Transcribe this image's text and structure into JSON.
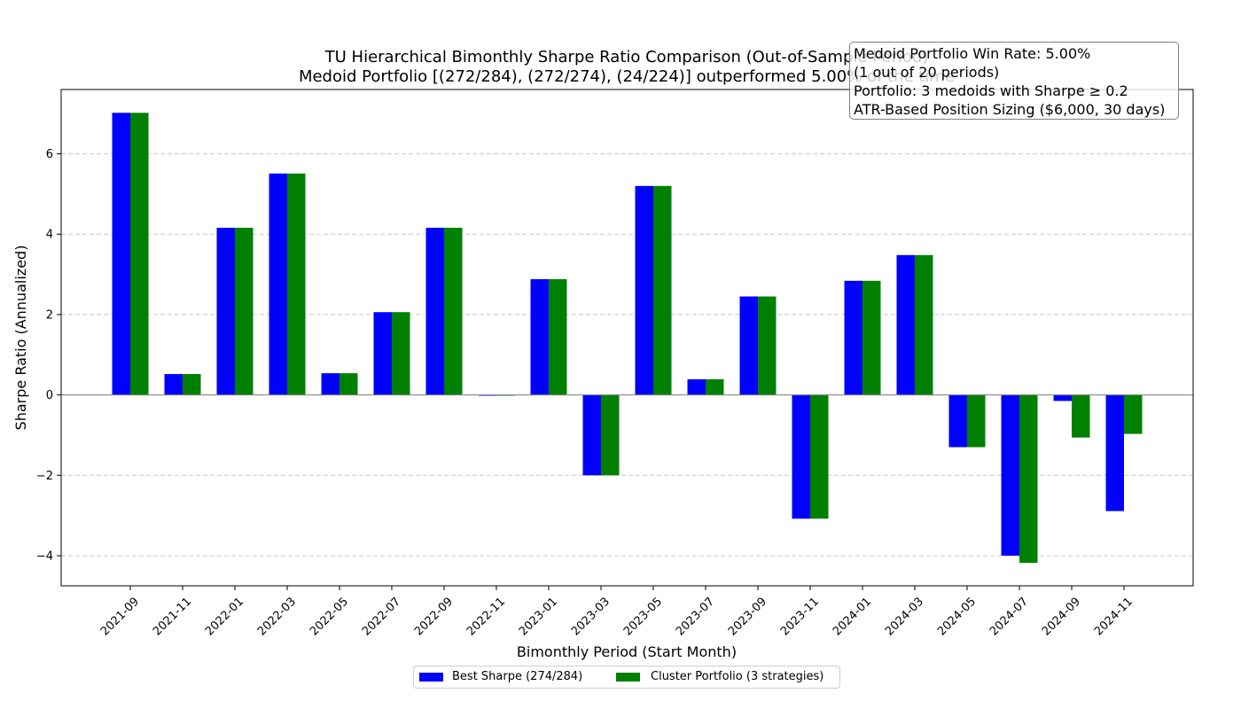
{
  "chart_data": {
    "type": "bar",
    "title": "TU Hierarchical Bimonthly Sharpe Ratio Comparison (Out-of-Sample Period)",
    "subtitle": "Medoid Portfolio [(272/284), (272/274), (24/224)] outperformed 5.00% of the time",
    "xlabel": "Bimonthly Period (Start Month)",
    "ylabel": "Sharpe Ratio (Annualized)",
    "ylim": [
      -4.75,
      7.6
    ],
    "yticks": [
      -4,
      -2,
      0,
      2,
      4,
      6
    ],
    "ytick_labels": [
      "−4",
      "−2",
      "0",
      "2",
      "4",
      "6"
    ],
    "grid": "horizontal dashed",
    "legend_placement": "bottom-center",
    "categories": [
      "2021-09",
      "2021-11",
      "2022-01",
      "2022-03",
      "2022-05",
      "2022-07",
      "2022-09",
      "2022-11",
      "2023-01",
      "2023-03",
      "2023-05",
      "2023-07",
      "2023-09",
      "2023-11",
      "2024-01",
      "2024-03",
      "2024-05",
      "2024-07",
      "2024-09",
      "2024-11"
    ],
    "series": [
      {
        "name": "Best Sharpe (274/284)",
        "color": "#0000ff",
        "values": [
          7.02,
          0.52,
          4.16,
          5.51,
          0.54,
          2.06,
          4.16,
          -0.02,
          2.88,
          -2.0,
          5.2,
          0.39,
          2.45,
          -3.08,
          2.84,
          3.48,
          -1.3,
          -4.0,
          -0.15,
          -2.89
        ]
      },
      {
        "name": "Cluster Portfolio (3 strategies)",
        "color": "#008000",
        "values": [
          7.02,
          0.52,
          4.16,
          5.51,
          0.54,
          2.06,
          4.16,
          -0.02,
          2.88,
          -2.0,
          5.2,
          0.39,
          2.45,
          -3.08,
          2.84,
          3.48,
          -1.3,
          -4.18,
          -1.06,
          -0.97
        ]
      }
    ],
    "annotation": {
      "lines": [
        "Medoid Portfolio Win Rate: 5.00%",
        "(1 out of 20 periods)",
        "Portfolio: 3 medoids with Sharpe ≥ 0.2",
        "ATR-Based Position Sizing ($6,000, 30 days)"
      ],
      "placement": "top-right"
    }
  }
}
